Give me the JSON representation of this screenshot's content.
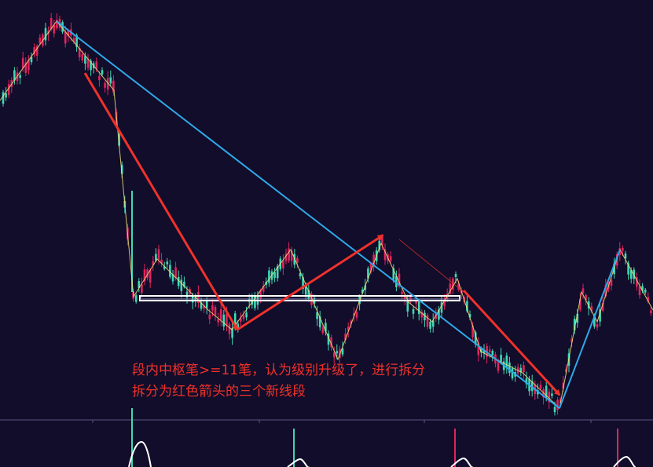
{
  "chart_data": {
    "type": "candlestick",
    "annotations": [
      "段内中枢笔>=11笔，认为级别升级了，进行拆分",
      "拆分为红色箭头的三个新线段"
    ],
    "colors": {
      "background": "#110d2a",
      "up_candle": "#e0245e",
      "down_candle": "#3fd9b4",
      "stroke_lines": "#f2e27a",
      "segment_lines": "#2fa8e8",
      "split_arrows": "#f0312b",
      "pivot_box": "#ffffff",
      "indicator_line": "#ffffff",
      "annotation_text": "#f0312b"
    },
    "segments": [
      {
        "from": [
          72,
          27
        ],
        "to": [
          712,
          520
        ]
      },
      {
        "from": [
          712,
          520
        ],
        "to": [
          789,
          318
        ]
      }
    ],
    "strokes": [
      [
        0,
        128
      ],
      [
        72,
        27
      ],
      [
        145,
        115
      ],
      [
        170,
        378
      ],
      [
        200,
        330
      ],
      [
        265,
        395
      ],
      [
        295,
        420
      ],
      [
        370,
        318
      ],
      [
        430,
        458
      ],
      [
        485,
        310
      ],
      [
        520,
        385
      ],
      [
        550,
        410
      ],
      [
        582,
        355
      ],
      [
        612,
        448
      ],
      [
        665,
        475
      ],
      [
        712,
        520
      ],
      [
        740,
        372
      ],
      [
        760,
        410
      ],
      [
        789,
        318
      ],
      [
        831,
        395
      ]
    ],
    "split_arrows": [
      {
        "from": [
          108,
          93
        ],
        "to": [
          302,
          420
        ]
      },
      {
        "from": [
          302,
          420
        ],
        "to": [
          487,
          300
        ]
      },
      {
        "from": [
          590,
          370
        ],
        "to": [
          712,
          503
        ]
      }
    ],
    "faint_arrows": [
      {
        "from": [
          318,
          410
        ],
        "to": [
          480,
          305
        ]
      },
      {
        "from": [
          508,
          305
        ],
        "to": [
          590,
          372
        ]
      }
    ],
    "pivot_zone": {
      "x_range": [
        178,
        585
      ],
      "y_range": [
        377,
        383
      ]
    },
    "indicator_spikes": [
      {
        "x": 168,
        "color": "#3fd9b4"
      },
      {
        "x": 374,
        "color": "#3fd9b4"
      },
      {
        "x": 579,
        "color": "#e0245e"
      },
      {
        "x": 786,
        "color": "#e0245e"
      }
    ],
    "indicator_humps": [
      {
        "x": 180,
        "peak": 563
      },
      {
        "x": 382,
        "peak": 585
      },
      {
        "x": 590,
        "peak": 584
      },
      {
        "x": 797,
        "peak": 582
      }
    ]
  }
}
